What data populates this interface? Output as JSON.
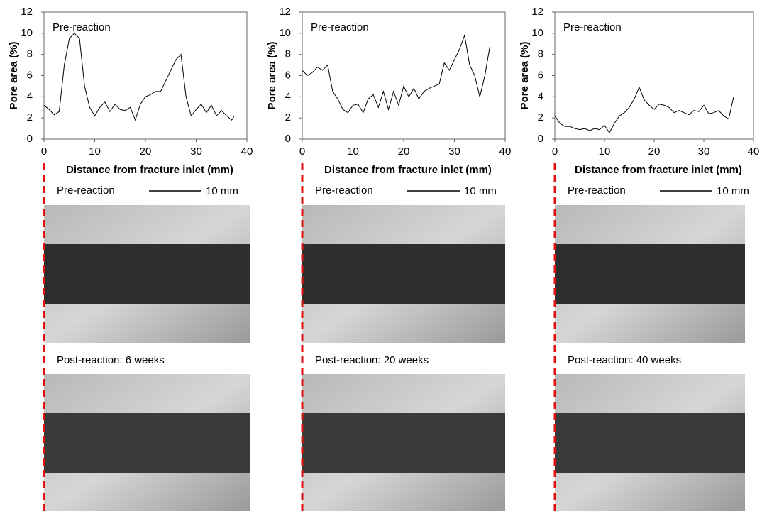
{
  "chart_data": [
    {
      "type": "line",
      "annotation": "Pre-reaction",
      "xlabel": "Distance from fracture inlet (mm)",
      "ylabel": "Pore area (%)",
      "xlim": [
        0,
        40
      ],
      "ylim": [
        0,
        12
      ],
      "xticks": [
        0,
        10,
        20,
        30,
        40
      ],
      "yticks": [
        0,
        2,
        4,
        6,
        8,
        10,
        12
      ],
      "color": "#000000",
      "x": [
        0,
        1,
        2,
        3,
        4,
        5,
        6,
        7,
        8,
        9,
        10,
        11,
        12,
        13,
        14,
        15,
        16,
        17,
        18,
        19,
        20,
        21,
        22,
        23,
        24,
        25,
        26,
        27,
        28,
        29,
        30,
        31,
        32,
        33,
        34,
        35,
        36,
        37,
        37.5
      ],
      "values": [
        3.2,
        2.8,
        2.3,
        2.6,
        7,
        9.5,
        10,
        9.5,
        5,
        3,
        2.2,
        3,
        3.5,
        2.6,
        3.3,
        2.8,
        2.7,
        3,
        1.8,
        3.3,
        4,
        4.2,
        4.5,
        4.5,
        5.5,
        6.5,
        7.5,
        8,
        4,
        2.2,
        2.8,
        3.3,
        2.5,
        3.2,
        2.2,
        2.7,
        2.2,
        1.8,
        2.2
      ]
    },
    {
      "type": "line",
      "annotation": "Pre-reaction",
      "xlabel": "Distance from fracture inlet (mm)",
      "ylabel": "Pore area (%)",
      "xlim": [
        0,
        40
      ],
      "ylim": [
        0,
        12
      ],
      "xticks": [
        0,
        10,
        20,
        30,
        40
      ],
      "yticks": [
        0,
        2,
        4,
        6,
        8,
        10,
        12
      ],
      "color": "#000000",
      "x": [
        0,
        1,
        2,
        3,
        4,
        5,
        6,
        7,
        8,
        9,
        10,
        11,
        12,
        13,
        14,
        15,
        16,
        17,
        18,
        19,
        20,
        21,
        22,
        23,
        24,
        25,
        26,
        27,
        28,
        29,
        30,
        31,
        32,
        33,
        34,
        35,
        36,
        37
      ],
      "values": [
        6.5,
        6,
        6.3,
        6.8,
        6.5,
        7,
        4.5,
        3.8,
        2.8,
        2.5,
        3.2,
        3.3,
        2.5,
        3.8,
        4.2,
        3,
        4.5,
        2.8,
        4.5,
        3.2,
        5,
        4,
        4.8,
        3.8,
        4.5,
        4.8,
        5,
        5.2,
        7.2,
        6.5,
        7.5,
        8.5,
        9.8,
        7,
        6,
        4,
        6,
        8.8
      ]
    },
    {
      "type": "line",
      "annotation": "Pre-reaction",
      "xlabel": "Distance from fracture inlet (mm)",
      "ylabel": "Pore area (%)",
      "xlim": [
        0,
        40
      ],
      "ylim": [
        0,
        12
      ],
      "xticks": [
        0,
        10,
        20,
        30,
        40
      ],
      "yticks": [
        0,
        2,
        4,
        6,
        8,
        10,
        12
      ],
      "color": "#000000",
      "x": [
        0,
        1,
        2,
        3,
        4,
        5,
        6,
        7,
        8,
        9,
        10,
        11,
        12,
        13,
        14,
        15,
        16,
        17,
        18,
        19,
        20,
        21,
        22,
        23,
        24,
        25,
        26,
        27,
        28,
        29,
        30,
        31,
        32,
        33,
        34,
        35,
        36
      ],
      "values": [
        2.2,
        1.5,
        1.2,
        1.2,
        1,
        0.9,
        1,
        0.8,
        1,
        0.9,
        1.3,
        0.6,
        1.5,
        2.2,
        2.5,
        3,
        3.8,
        4.9,
        3.7,
        3.2,
        2.8,
        3.3,
        3.2,
        3,
        2.5,
        2.7,
        2.5,
        2.3,
        2.7,
        2.6,
        3.2,
        2.4,
        2.5,
        2.7,
        2.2,
        1.9,
        4
      ]
    }
  ],
  "panels": [
    {
      "pre": "Pre-reaction",
      "scale": "10 mm",
      "post": "Post-reaction: 6 weeks"
    },
    {
      "pre": "Pre-reaction",
      "scale": "10 mm",
      "post": "Post-reaction: 20 weeks"
    },
    {
      "pre": "Pre-reaction",
      "scale": "10 mm",
      "post": "Post-reaction: 40 weeks"
    }
  ]
}
